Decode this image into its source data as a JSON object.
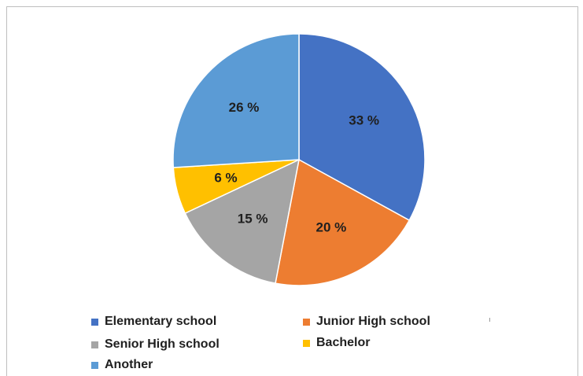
{
  "chart_data": {
    "type": "pie",
    "title": "",
    "categories": [
      "Elementary school",
      "Junior High school",
      "Senior High school",
      "Bachelor",
      "Another"
    ],
    "values": [
      33,
      20,
      15,
      6,
      26
    ],
    "value_labels": [
      "33 %",
      "20 %",
      "15 %",
      "6 %",
      "26 %"
    ],
    "slice_order": [
      0,
      1,
      2,
      3,
      4
    ],
    "start_angle_deg": 0,
    "direction": "clockwise",
    "colors": [
      "#4472c4",
      "#ed7d31",
      "#a5a5a5",
      "#ffc000",
      "#5b9bd5"
    ],
    "legend": {
      "placement": "bottom",
      "entries": [
        "Elementary school",
        "Junior High school",
        "Senior High school",
        "Bachelor",
        "Another"
      ]
    }
  }
}
